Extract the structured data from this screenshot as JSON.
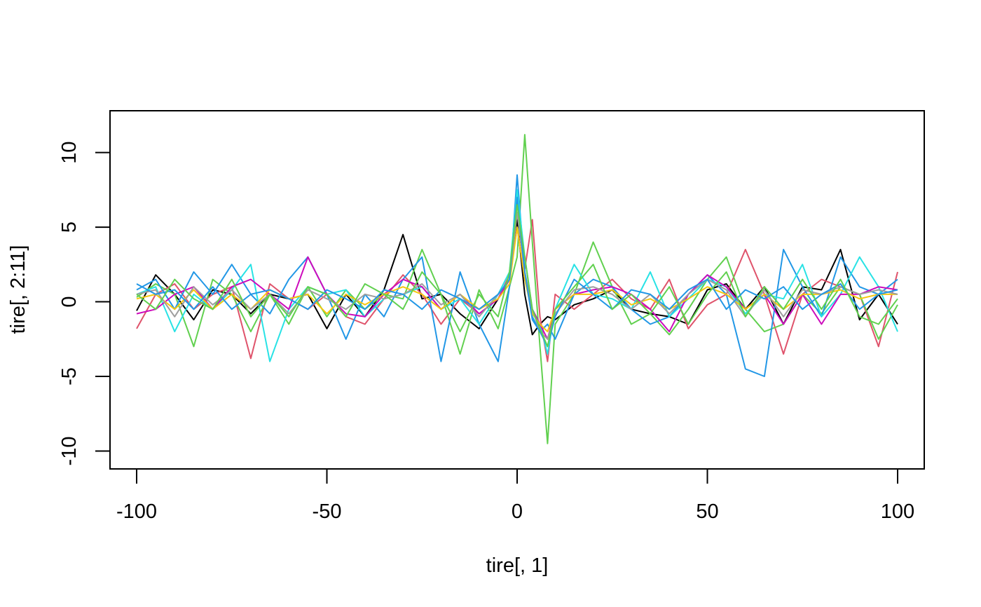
{
  "chart_data": {
    "type": "line",
    "xlabel": "tire[, 1]",
    "ylabel": "tire[, 2:11]",
    "xlim": [
      -107,
      107
    ],
    "ylim": [
      -11.2,
      12.8
    ],
    "x_ticks": [
      -100,
      -50,
      0,
      50,
      100
    ],
    "x_tick_labels": [
      "-100",
      "-50",
      "0",
      "50",
      "100"
    ],
    "y_ticks": [
      -10,
      -5,
      0,
      5,
      10
    ],
    "y_tick_labels": [
      "-10",
      "-5",
      "0",
      "5",
      "10"
    ],
    "grid": false,
    "legend": "none",
    "x": [
      -100,
      -95,
      -90,
      -85,
      -80,
      -75,
      -70,
      -65,
      -60,
      -55,
      -50,
      -45,
      -40,
      -35,
      -30,
      -25,
      -20,
      -15,
      -10,
      -5,
      -2,
      0,
      2,
      4,
      6,
      8,
      10,
      15,
      20,
      25,
      30,
      35,
      40,
      45,
      50,
      55,
      60,
      65,
      70,
      75,
      80,
      85,
      90,
      95,
      100
    ],
    "series": [
      {
        "color": "#000000",
        "values": [
          -0.6,
          1.8,
          0.5,
          -1.2,
          0.8,
          0.5,
          -0.8,
          0.5,
          0.2,
          0.5,
          -1.8,
          0.5,
          -1.0,
          0.8,
          4.5,
          0.2,
          0.5,
          -0.8,
          -1.8,
          0.2,
          1.5,
          5.5,
          0.5,
          -2.2,
          -1.5,
          -1.0,
          -1.2,
          -0.2,
          0.2,
          0.8,
          -0.5,
          -0.8,
          -1.0,
          -1.5,
          0.8,
          1.2,
          -0.5,
          1.0,
          -1.5,
          1.0,
          0.8,
          3.5,
          -1.2,
          0.5,
          -1.5
        ]
      },
      {
        "color": "#DF536B",
        "values": [
          -1.8,
          0.5,
          1.2,
          -0.5,
          0.5,
          1.0,
          -3.8,
          1.2,
          0.2,
          -0.5,
          0.5,
          -1.0,
          -1.5,
          0.2,
          1.8,
          0.5,
          -1.5,
          0.2,
          -0.8,
          0.2,
          1.8,
          6.0,
          2.2,
          5.5,
          -1.0,
          -4.0,
          0.5,
          -0.5,
          0.5,
          1.5,
          0.2,
          -0.5,
          1.5,
          -1.8,
          -0.2,
          0.5,
          3.5,
          0.5,
          -3.5,
          0.5,
          1.5,
          1.0,
          0.5,
          -3.0,
          2.0
        ]
      },
      {
        "color": "#61D04F",
        "values": [
          0.3,
          1.2,
          0.5,
          -3.0,
          1.5,
          0.5,
          -2.0,
          0.5,
          -1.5,
          1.0,
          -1.0,
          0.8,
          -0.5,
          0.5,
          0.2,
          3.5,
          0.5,
          -3.5,
          0.8,
          -1.8,
          1.0,
          3.0,
          11.2,
          4.0,
          -3.0,
          -9.5,
          -1.5,
          0.5,
          4.0,
          1.0,
          -1.5,
          -0.8,
          -2.2,
          -0.5,
          1.5,
          3.0,
          -0.5,
          -2.0,
          -1.5,
          0.5,
          -0.8,
          1.0,
          0.5,
          -2.5,
          -0.2
        ]
      },
      {
        "color": "#2297E6",
        "values": [
          0.8,
          1.5,
          -0.5,
          2.0,
          0.5,
          2.5,
          0.5,
          -0.8,
          1.5,
          3.0,
          0.5,
          -2.5,
          0.5,
          -1.0,
          1.5,
          3.0,
          -4.0,
          2.0,
          -1.5,
          -4.0,
          1.0,
          8.5,
          2.0,
          -1.0,
          -2.0,
          -1.5,
          -2.5,
          0.5,
          1.5,
          1.0,
          -0.5,
          -1.5,
          -1.0,
          0.5,
          1.8,
          0.5,
          -4.5,
          -5.0,
          3.5,
          1.0,
          -1.0,
          3.0,
          1.0,
          0.5,
          1.5
        ]
      },
      {
        "color": "#28E2E5",
        "values": [
          0.5,
          1.0,
          -2.0,
          0.5,
          -0.5,
          0.8,
          2.5,
          -4.0,
          -0.5,
          1.0,
          0.5,
          0.8,
          -1.0,
          0.2,
          0.5,
          1.0,
          -0.5,
          0.2,
          -1.5,
          0.5,
          2.0,
          7.5,
          3.0,
          -0.5,
          -1.5,
          -3.5,
          -0.5,
          2.5,
          0.5,
          0.2,
          -0.5,
          2.0,
          -1.0,
          0.2,
          1.5,
          1.0,
          -0.8,
          0.5,
          0.2,
          2.5,
          -1.0,
          0.5,
          3.0,
          1.0,
          -2.0
        ]
      },
      {
        "color": "#CD0BBC",
        "values": [
          -0.8,
          -0.5,
          0.5,
          1.0,
          -0.5,
          1.0,
          1.5,
          0.5,
          -0.5,
          3.0,
          0.5,
          -0.8,
          -1.0,
          0.5,
          1.5,
          1.0,
          -0.5,
          0.5,
          -0.8,
          0.2,
          1.5,
          5.0,
          1.5,
          -0.5,
          -1.5,
          -2.5,
          -0.5,
          0.5,
          0.8,
          1.0,
          0.5,
          -0.5,
          -2.0,
          0.5,
          1.8,
          1.0,
          -0.5,
          0.5,
          -1.5,
          0.5,
          -1.5,
          0.5,
          0.5,
          1.0,
          0.8
        ]
      },
      {
        "color": "#F5C710",
        "values": [
          0.2,
          0.5,
          -0.5,
          0.8,
          -0.5,
          0.5,
          -0.5,
          0.8,
          0.2,
          0.5,
          -0.8,
          0.5,
          -0.2,
          0.5,
          1.0,
          0.5,
          -0.5,
          0.5,
          -0.5,
          0.2,
          1.2,
          5.0,
          1.5,
          -0.8,
          -1.5,
          -2.0,
          -0.5,
          0.5,
          0.5,
          0.8,
          -0.2,
          0.2,
          -0.5,
          0.2,
          1.0,
          0.5,
          -0.5,
          0.5,
          -0.5,
          0.5,
          0.5,
          0.8,
          0.2,
          0.5,
          0.5
        ]
      },
      {
        "color": "#9E9E9E",
        "values": [
          0.5,
          0.8,
          -1.0,
          1.0,
          -0.2,
          0.8,
          -0.5,
          0.5,
          -0.8,
          0.8,
          0.2,
          -0.5,
          0.5,
          0.2,
          0.5,
          1.2,
          -0.2,
          0.5,
          -1.0,
          0.5,
          1.5,
          6.0,
          2.0,
          -0.5,
          -2.0,
          -2.5,
          -0.8,
          0.8,
          1.0,
          0.5,
          -0.5,
          0.5,
          -0.8,
          0.5,
          1.5,
          0.8,
          -1.0,
          0.8,
          -1.0,
          0.8,
          0.5,
          1.0,
          0.5,
          0.8,
          0.5
        ]
      },
      {
        "color": "#2297E6",
        "values": [
          1.2,
          0.5,
          0.8,
          -0.5,
          1.0,
          -0.5,
          0.5,
          0.8,
          0.2,
          -0.5,
          0.8,
          0.2,
          -0.5,
          0.8,
          0.5,
          -0.5,
          0.8,
          0.2,
          -0.5,
          0.5,
          1.5,
          7.0,
          2.0,
          -1.2,
          -2.0,
          -3.0,
          -1.0,
          1.5,
          0.5,
          -0.5,
          0.8,
          0.5,
          -0.5,
          0.8,
          1.5,
          -0.5,
          0.8,
          0.2,
          1.0,
          -0.5,
          0.5,
          1.2,
          -0.5,
          0.5,
          0.8
        ]
      },
      {
        "color": "#61D04F",
        "values": [
          0.5,
          -0.5,
          1.5,
          0.2,
          -0.5,
          1.5,
          -1.0,
          0.5,
          -1.0,
          1.0,
          0.5,
          -1.0,
          1.2,
          0.5,
          -0.5,
          2.0,
          0.5,
          -2.0,
          0.5,
          -1.0,
          2.0,
          6.5,
          3.0,
          -0.5,
          -1.8,
          -3.0,
          -0.5,
          1.0,
          2.5,
          -0.5,
          0.5,
          -0.8,
          1.0,
          -1.5,
          0.5,
          2.0,
          -1.0,
          1.0,
          -0.5,
          1.5,
          -0.5,
          1.5,
          -1.0,
          -1.5,
          0.2
        ]
      }
    ]
  }
}
